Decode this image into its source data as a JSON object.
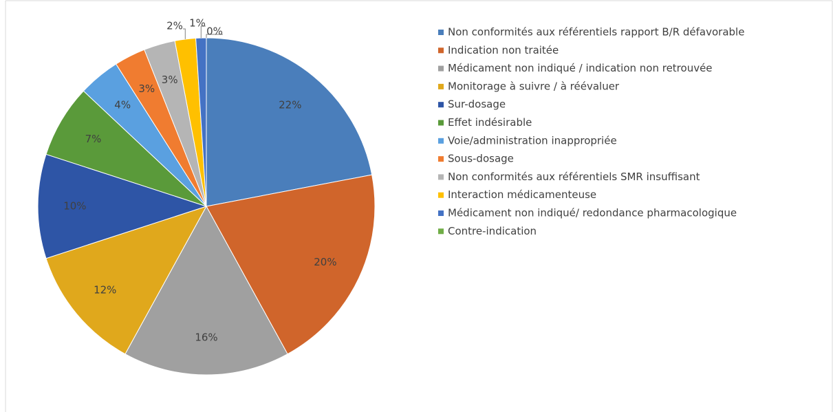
{
  "chart_data": {
    "type": "pie",
    "categories": [
      "Non conformités aux référentiels rapport B/R défavorable",
      "Indication non traitée",
      "Médicament non indiqué / indication non retrouvée",
      "Monitorage à suivre / à réévaluer",
      "Sur-dosage",
      "Effet indésirable",
      "Voie/administration  inappropriée",
      "Sous-dosage",
      "Non conformités aux référentiels SMR insuffisant",
      "Interaction médicamenteuse",
      "Médicament non indiqué/ redondance pharmacologique",
      "Contre-indication"
    ],
    "values": [
      22,
      20,
      16,
      12,
      10,
      7,
      4,
      3,
      3,
      2,
      1,
      0
    ],
    "value_labels": [
      "22%",
      "20%",
      "16%",
      "12%",
      "10%",
      "7%",
      "4%",
      "3%",
      "3%",
      "2%",
      "1%",
      "0%"
    ],
    "colors": [
      "#4a7ebb",
      "#d0652b",
      "#a0a0a0",
      "#e0a81c",
      "#2e55a6",
      "#5a9a3a",
      "#5aa0e0",
      "#f07c30",
      "#b5b5b5",
      "#ffc000",
      "#4472c4",
      "#70ad47"
    ],
    "legend": "right"
  }
}
